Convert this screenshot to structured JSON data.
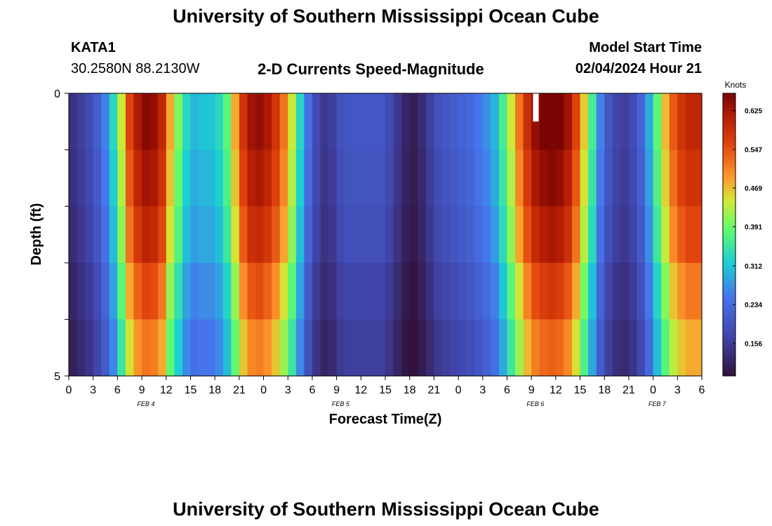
{
  "header": {
    "title": "University of Southern Mississippi Ocean Cube",
    "station_id": "KATA1",
    "station_coords": "30.2580N  88.2130W",
    "chart_title": "2-D Currents Speed-Magnitude",
    "model_start_label": "Model Start Time",
    "model_start_value": "02/04/2024 Hour 21",
    "footer_title": "University of Southern Mississippi Ocean Cube"
  },
  "chart_data": {
    "type": "heatmap",
    "title": "2-D Currents Speed-Magnitude",
    "xlabel": "Forecast Time(Z)",
    "ylabel": "Depth (ft)",
    "xlim": [
      0,
      78
    ],
    "ylim": [
      5,
      0
    ],
    "x_tick_labels": [
      "0",
      "3",
      "6",
      "9",
      "12",
      "15",
      "18",
      "21",
      "0",
      "3",
      "6",
      "9",
      "12",
      "15",
      "18",
      "21",
      "0",
      "3",
      "6",
      "9",
      "12",
      "15",
      "18",
      "21",
      "0",
      "3",
      "6"
    ],
    "y_tick_labels": [
      "0",
      "5"
    ],
    "day_labels": [
      "FEB 4",
      "FEB 5",
      "FEB 6",
      "FEB 7"
    ],
    "day_label_hours": [
      9.5,
      33.5,
      57.5,
      72.5
    ],
    "colorbar": {
      "label": "Knots",
      "ticks": [
        0.156,
        0.234,
        0.312,
        0.391,
        0.469,
        0.547,
        0.625
      ],
      "range": [
        0.09,
        0.66
      ]
    },
    "depth_levels": 5,
    "hour_step": 1,
    "speed_profile_knots": [
      0.14,
      0.16,
      0.18,
      0.21,
      0.26,
      0.33,
      0.44,
      0.56,
      0.62,
      0.65,
      0.64,
      0.6,
      0.48,
      0.4,
      0.33,
      0.3,
      0.31,
      0.31,
      0.33,
      0.38,
      0.48,
      0.58,
      0.63,
      0.64,
      0.62,
      0.58,
      0.52,
      0.44,
      0.33,
      0.24,
      0.18,
      0.15,
      0.16,
      0.19,
      0.2,
      0.2,
      0.2,
      0.2,
      0.2,
      0.18,
      0.15,
      0.12,
      0.11,
      0.13,
      0.16,
      0.19,
      0.2,
      0.21,
      0.22,
      0.23,
      0.25,
      0.27,
      0.3,
      0.36,
      0.44,
      0.52,
      0.59,
      0.64,
      0.66,
      0.67,
      0.66,
      0.63,
      0.56,
      0.46,
      0.36,
      0.26,
      0.2,
      0.17,
      0.16,
      0.18,
      0.22,
      0.29,
      0.38,
      0.47,
      0.54,
      0.58,
      0.6,
      0.6,
      0.6
    ],
    "depth_factors": [
      1.0,
      0.97,
      0.93,
      0.86,
      0.8
    ],
    "note": "Cell speed = profile value at hour x depth factor (approximate reading of the plotted field); white cell near hour 57 at top level is a missing value."
  }
}
